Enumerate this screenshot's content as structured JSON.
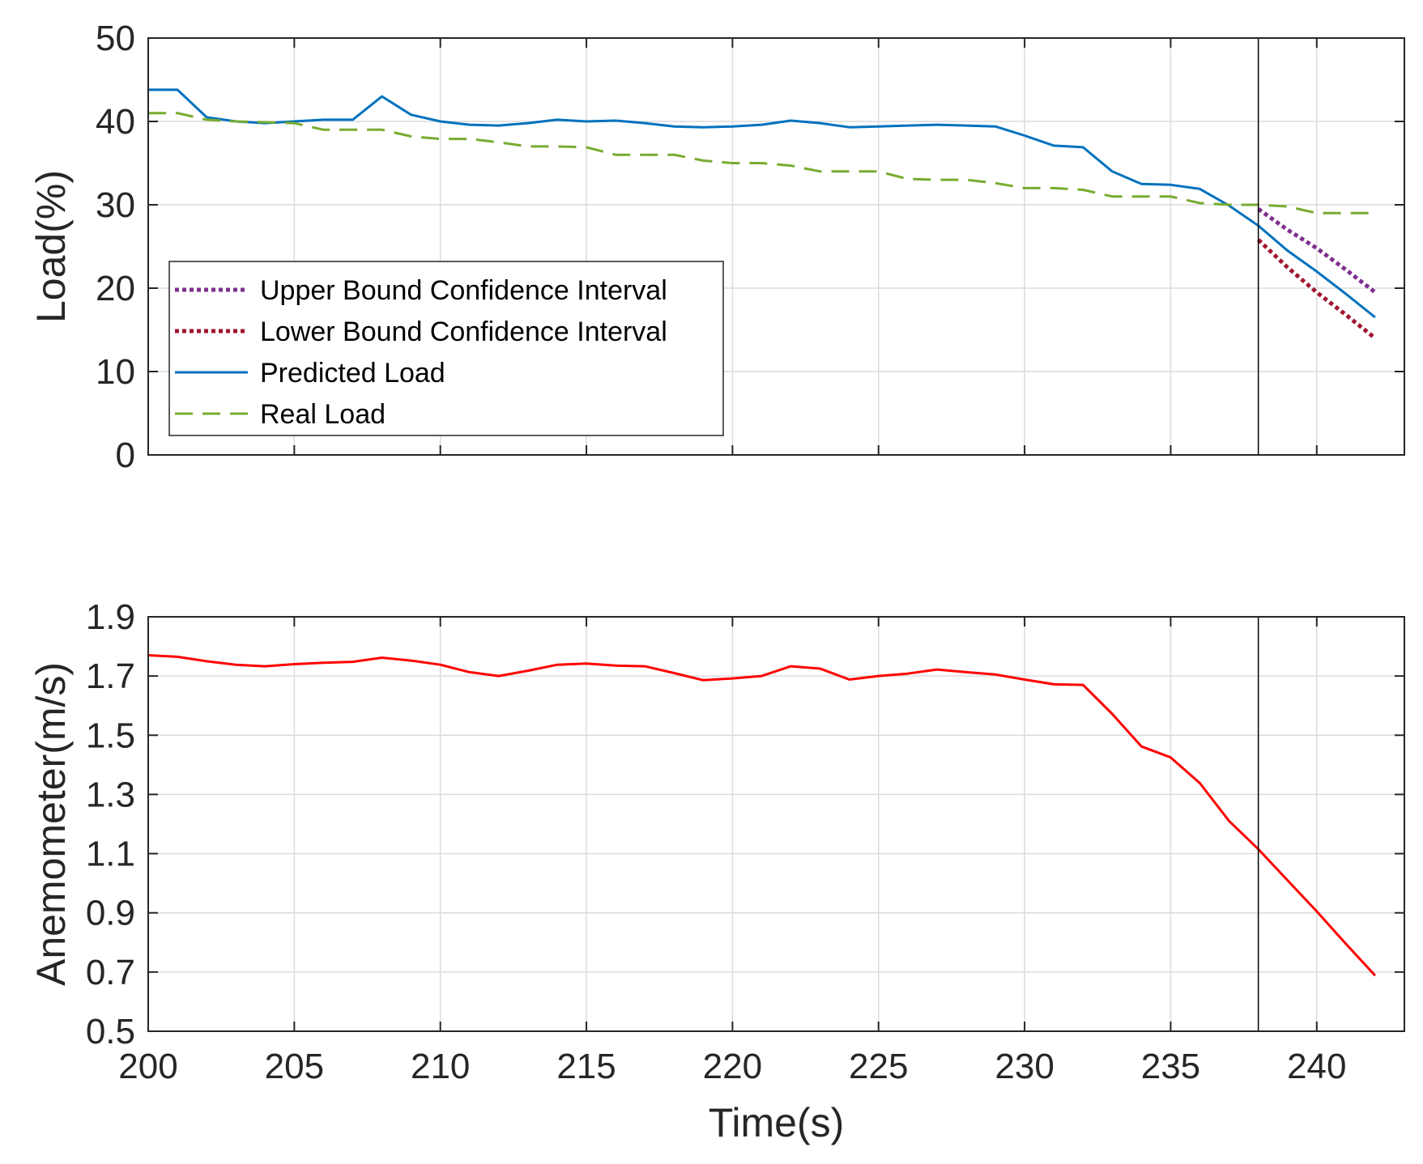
{
  "chart_data": [
    {
      "type": "line",
      "ylabel": "Load(%)",
      "xlim": [
        200,
        243
      ],
      "ylim": [
        0,
        50
      ],
      "xticks": [
        200,
        205,
        210,
        215,
        220,
        225,
        230,
        235,
        240
      ],
      "yticks": [
        0,
        10,
        20,
        30,
        40,
        50
      ],
      "ytick_labels": [
        "0",
        "10",
        "20",
        "30",
        "40",
        "50"
      ],
      "show_xtick_labels": false,
      "grid": true,
      "legend_position": "lower-left",
      "vertical_marker_x": 238,
      "series": [
        {
          "name": "Upper Bound Confidence Interval",
          "style": "dotted",
          "color": "#7E2F8E",
          "x": [
            238,
            239,
            240,
            241,
            242
          ],
          "y": [
            29.5,
            27,
            24.8,
            22.2,
            19.5
          ]
        },
        {
          "name": "Lower Bound Confidence Interval",
          "style": "dotted",
          "color": "#A2142F",
          "x": [
            238,
            239,
            240,
            241,
            242
          ],
          "y": [
            25.8,
            22.5,
            19.5,
            16.8,
            14
          ]
        },
        {
          "name": "Predicted Load",
          "style": "solid",
          "color": "#0072BD",
          "x": [
            200,
            201,
            202,
            203,
            204,
            205,
            206,
            207,
            208,
            209,
            210,
            211,
            212,
            213,
            214,
            215,
            216,
            217,
            218,
            219,
            220,
            221,
            222,
            223,
            224,
            225,
            226,
            227,
            228,
            229,
            230,
            231,
            232,
            233,
            234,
            235,
            236,
            237,
            238,
            239,
            240,
            241,
            242
          ],
          "y": [
            43.8,
            43.8,
            40.5,
            40,
            39.8,
            40,
            40.2,
            40.2,
            43,
            40.8,
            40,
            39.6,
            39.5,
            39.8,
            40.2,
            40,
            40.1,
            39.8,
            39.4,
            39.3,
            39.4,
            39.6,
            40.1,
            39.8,
            39.3,
            39.4,
            39.5,
            39.6,
            39.5,
            39.4,
            38.3,
            37.1,
            36.9,
            34,
            32.5,
            32.4,
            31.9,
            29.9,
            27.5,
            24.5,
            22,
            19.3,
            16.5
          ]
        },
        {
          "name": "Real Load",
          "style": "dashed",
          "color": "#77AC30",
          "x": [
            200,
            201,
            202,
            203,
            204,
            205,
            206,
            207,
            208,
            209,
            210,
            211,
            212,
            213,
            214,
            215,
            216,
            217,
            218,
            219,
            220,
            221,
            222,
            223,
            224,
            225,
            226,
            227,
            228,
            229,
            230,
            231,
            232,
            233,
            234,
            235,
            236,
            237,
            238,
            239,
            240,
            241,
            242
          ],
          "y": [
            41,
            41,
            40.2,
            40,
            39.9,
            39.8,
            39,
            39,
            39,
            38.2,
            37.9,
            37.9,
            37.5,
            37,
            37,
            36.9,
            36,
            36,
            36,
            35.3,
            35,
            35,
            34.7,
            34,
            34,
            34,
            33.1,
            33,
            33,
            32.6,
            32,
            32,
            31.8,
            31,
            31,
            31,
            30.2,
            30,
            30,
            29.8,
            29,
            29,
            29
          ]
        }
      ]
    },
    {
      "type": "line",
      "xlabel": "Time(s)",
      "ylabel": "Anemometer(m/s)",
      "xlim": [
        200,
        243
      ],
      "ylim": [
        0.5,
        1.9
      ],
      "xticks": [
        200,
        205,
        210,
        215,
        220,
        225,
        230,
        235,
        240
      ],
      "xtick_labels": [
        "200",
        "205",
        "210",
        "215",
        "220",
        "225",
        "230",
        "235",
        "240"
      ],
      "yticks": [
        0.5,
        0.7,
        0.9,
        1.1,
        1.3,
        1.5,
        1.7,
        1.9
      ],
      "ytick_labels": [
        "0.5",
        "0.7",
        "0.9",
        "1.1",
        "1.3",
        "1.5",
        "1.7",
        "1.9"
      ],
      "grid": true,
      "vertical_marker_x": 238,
      "series": [
        {
          "style": "solid",
          "color": "#FF0000",
          "x": [
            200,
            201,
            202,
            203,
            204,
            205,
            206,
            207,
            208,
            209,
            210,
            211,
            212,
            213,
            214,
            215,
            216,
            217,
            218,
            219,
            220,
            221,
            222,
            223,
            224,
            225,
            226,
            227,
            228,
            229,
            230,
            231,
            232,
            233,
            234,
            235,
            236,
            237,
            238,
            239,
            240,
            241,
            242
          ],
          "y": [
            1.77,
            1.765,
            1.75,
            1.738,
            1.733,
            1.74,
            1.745,
            1.748,
            1.762,
            1.752,
            1.738,
            1.713,
            1.7,
            1.718,
            1.738,
            1.742,
            1.735,
            1.733,
            1.71,
            1.686,
            1.692,
            1.7,
            1.733,
            1.725,
            1.688,
            1.7,
            1.708,
            1.722,
            1.713,
            1.705,
            1.688,
            1.672,
            1.67,
            1.572,
            1.462,
            1.425,
            1.338,
            1.21,
            1.115,
            1.01,
            0.905,
            0.795,
            0.688
          ]
        }
      ]
    }
  ],
  "legend": {
    "entries": [
      "Upper Bound Confidence Interval",
      "Lower Bound Confidence Interval",
      "Predicted Load",
      "Real Load"
    ]
  }
}
